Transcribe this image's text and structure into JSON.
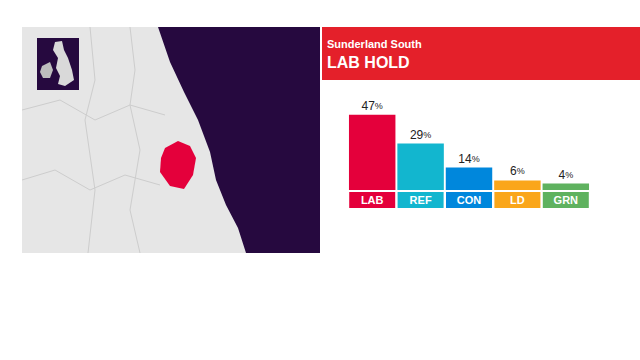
{
  "chart_data": {
    "type": "bar",
    "title": "Sunderland South",
    "subtitle": "LAB HOLD",
    "categories": [
      "LAB",
      "REF",
      "CON",
      "LD",
      "GRN"
    ],
    "values": [
      47,
      29,
      14,
      6,
      4
    ],
    "value_labels": [
      "47%",
      "29%",
      "14%",
      "6%",
      "4%"
    ],
    "colors": [
      "#e4003b",
      "#12b6cf",
      "#0087dc",
      "#faa61a",
      "#5fb25f"
    ],
    "ylim": [
      0,
      50
    ],
    "grid": false,
    "data_labels": true,
    "tick_labels": "x"
  }
}
